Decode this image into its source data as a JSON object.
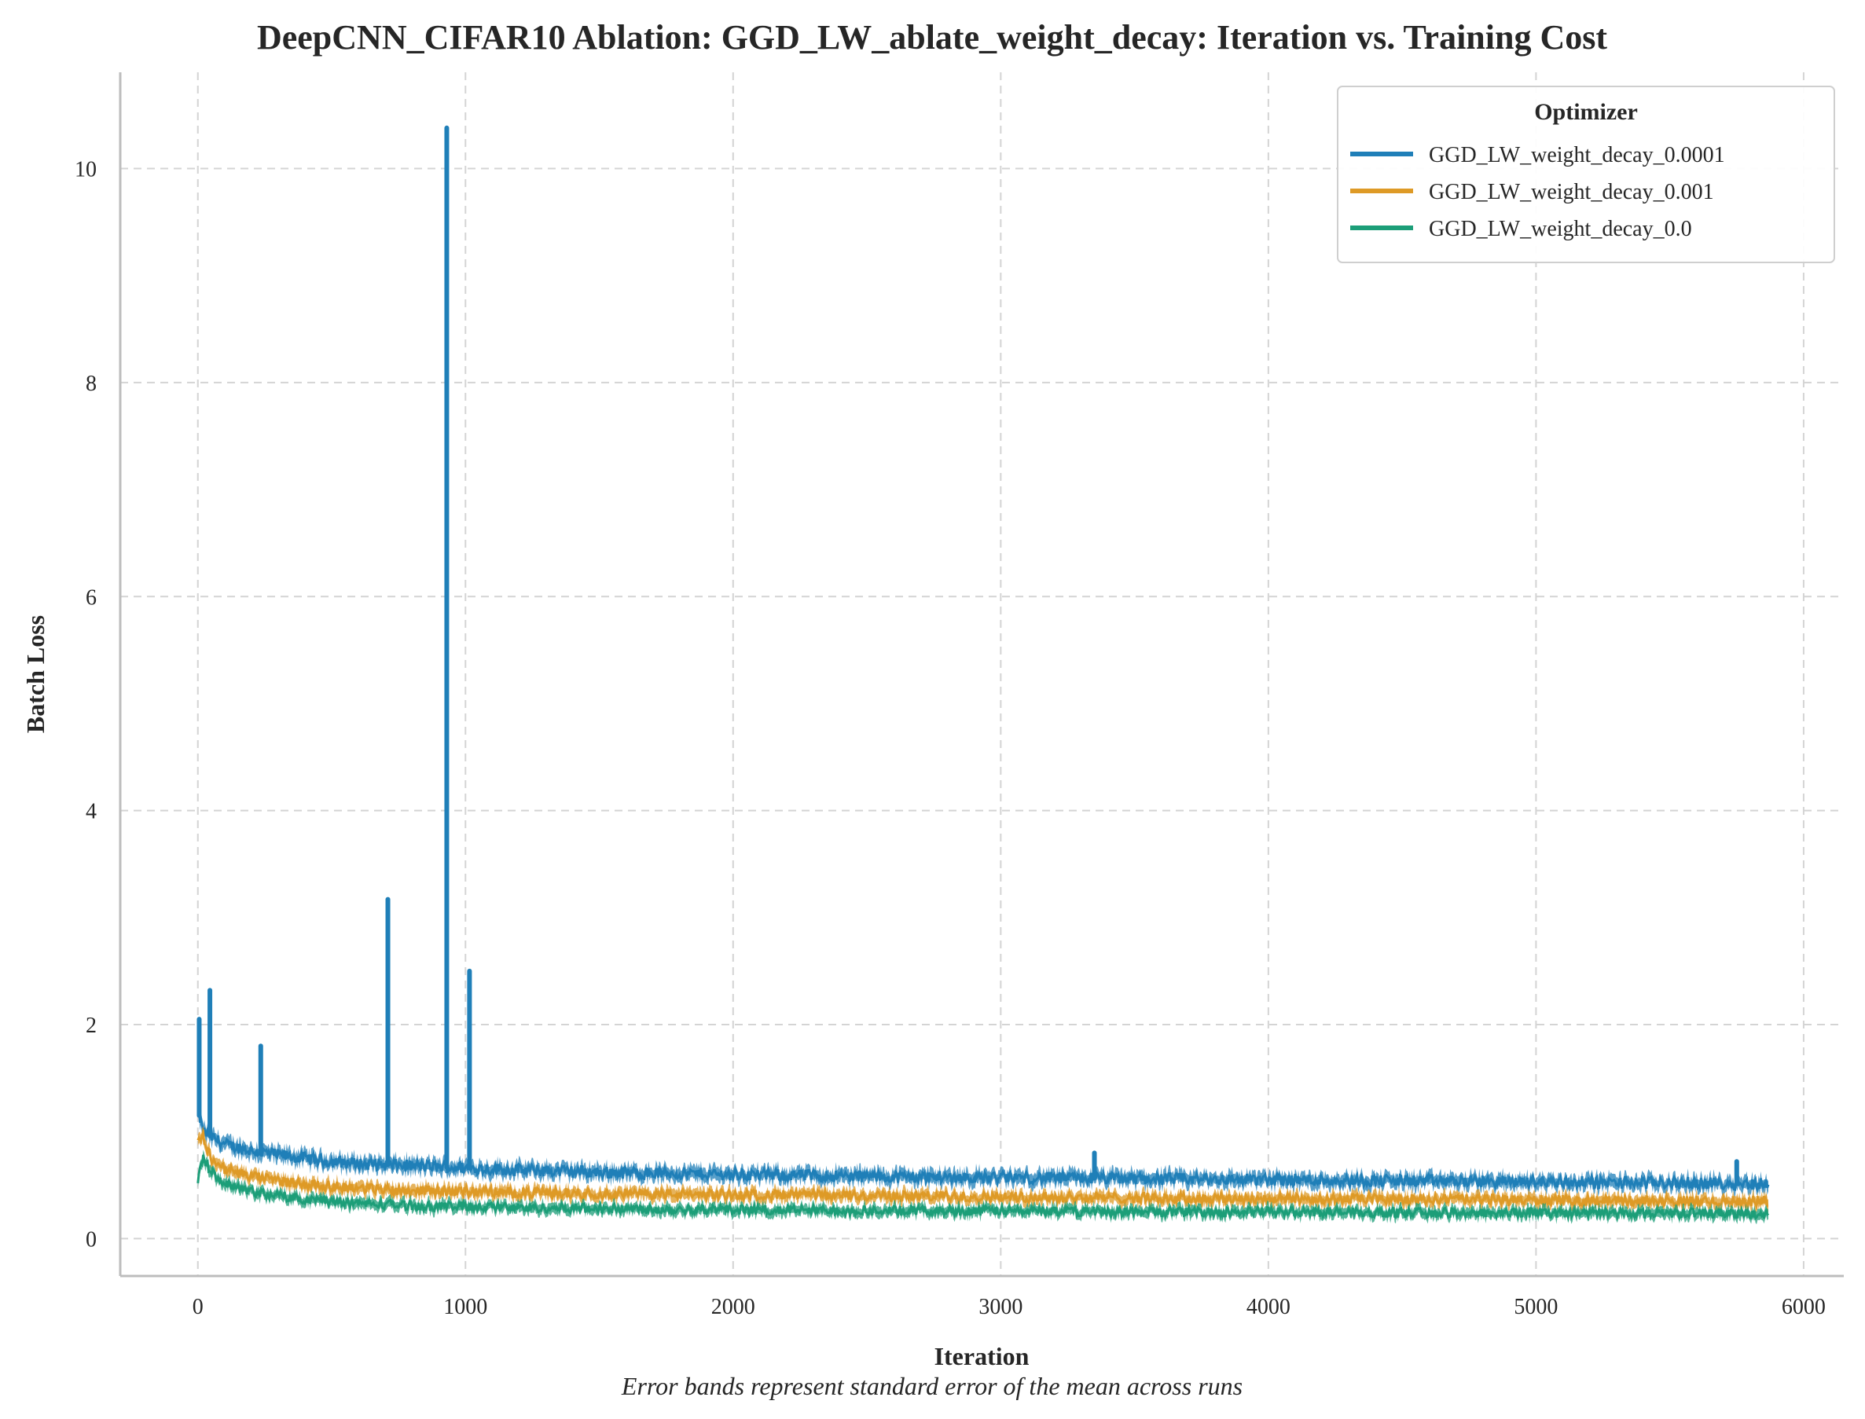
{
  "chart_data": {
    "type": "line",
    "title": "DeepCNN_CIFAR10 Ablation: GGD_LW_ablate_weight_decay: Iteration vs. Training Cost",
    "xlabel": "Iteration",
    "ylabel": "Batch Loss",
    "caption": "Error bands represent standard error of the mean across runs",
    "xlim": [
      -290,
      6150
    ],
    "ylim": [
      -0.35,
      10.9
    ],
    "x_ticks": [
      0,
      1000,
      2000,
      3000,
      4000,
      5000,
      6000
    ],
    "y_ticks": [
      0,
      2,
      4,
      6,
      8,
      10
    ],
    "x_tick_labels": [
      "0",
      "1000",
      "2000",
      "3000",
      "4000",
      "5000",
      "6000"
    ],
    "y_tick_labels": [
      "0",
      "2",
      "4",
      "6",
      "8",
      "10"
    ],
    "grid": true,
    "legend": {
      "title": "Optimizer",
      "placement": "top-right"
    },
    "series": [
      {
        "name": "GGD_LW_weight_decay_0.0001",
        "color": "#1f7fb8",
        "x": [
          0,
          20,
          50,
          100,
          200,
          300,
          400,
          500,
          600,
          700,
          800,
          900,
          1000,
          1200,
          1500,
          2000,
          2500,
          3000,
          3500,
          4000,
          4500,
          5000,
          5500,
          5870
        ],
        "values": [
          1.2,
          1.0,
          0.95,
          0.88,
          0.82,
          0.78,
          0.75,
          0.72,
          0.7,
          0.69,
          0.68,
          0.67,
          0.66,
          0.64,
          0.62,
          0.6,
          0.58,
          0.57,
          0.56,
          0.55,
          0.54,
          0.53,
          0.52,
          0.51
        ],
        "band": 0.07,
        "spikes": [
          {
            "x": 5,
            "y": 2.05
          },
          {
            "x": 45,
            "y": 2.32
          },
          {
            "x": 235,
            "y": 1.8
          },
          {
            "x": 710,
            "y": 3.17
          },
          {
            "x": 930,
            "y": 10.38
          },
          {
            "x": 1015,
            "y": 2.5
          },
          {
            "x": 3350,
            "y": 0.8
          },
          {
            "x": 5750,
            "y": 0.72
          }
        ]
      },
      {
        "name": "GGD_LW_weight_decay_0.001",
        "color": "#de9a26",
        "x": [
          0,
          20,
          50,
          100,
          200,
          300,
          400,
          500,
          600,
          700,
          800,
          900,
          1000,
          1200,
          1500,
          2000,
          2500,
          3000,
          3500,
          4000,
          4500,
          5000,
          5500,
          5870
        ],
        "values": [
          0.9,
          0.95,
          0.75,
          0.65,
          0.58,
          0.54,
          0.51,
          0.49,
          0.47,
          0.46,
          0.45,
          0.45,
          0.44,
          0.43,
          0.42,
          0.41,
          0.4,
          0.39,
          0.38,
          0.37,
          0.37,
          0.36,
          0.35,
          0.35
        ],
        "band": 0.06,
        "spikes": []
      },
      {
        "name": "GGD_LW_weight_decay_0.0",
        "color": "#1c9e78",
        "x": [
          0,
          20,
          50,
          100,
          200,
          300,
          400,
          500,
          600,
          700,
          800,
          900,
          1000,
          1200,
          1500,
          2000,
          2500,
          3000,
          3500,
          4000,
          4500,
          5000,
          5500,
          5870
        ],
        "values": [
          0.55,
          0.75,
          0.62,
          0.52,
          0.44,
          0.4,
          0.37,
          0.35,
          0.33,
          0.32,
          0.31,
          0.3,
          0.3,
          0.29,
          0.28,
          0.27,
          0.26,
          0.26,
          0.25,
          0.25,
          0.24,
          0.24,
          0.24,
          0.23
        ],
        "band": 0.055,
        "spikes": []
      }
    ]
  }
}
